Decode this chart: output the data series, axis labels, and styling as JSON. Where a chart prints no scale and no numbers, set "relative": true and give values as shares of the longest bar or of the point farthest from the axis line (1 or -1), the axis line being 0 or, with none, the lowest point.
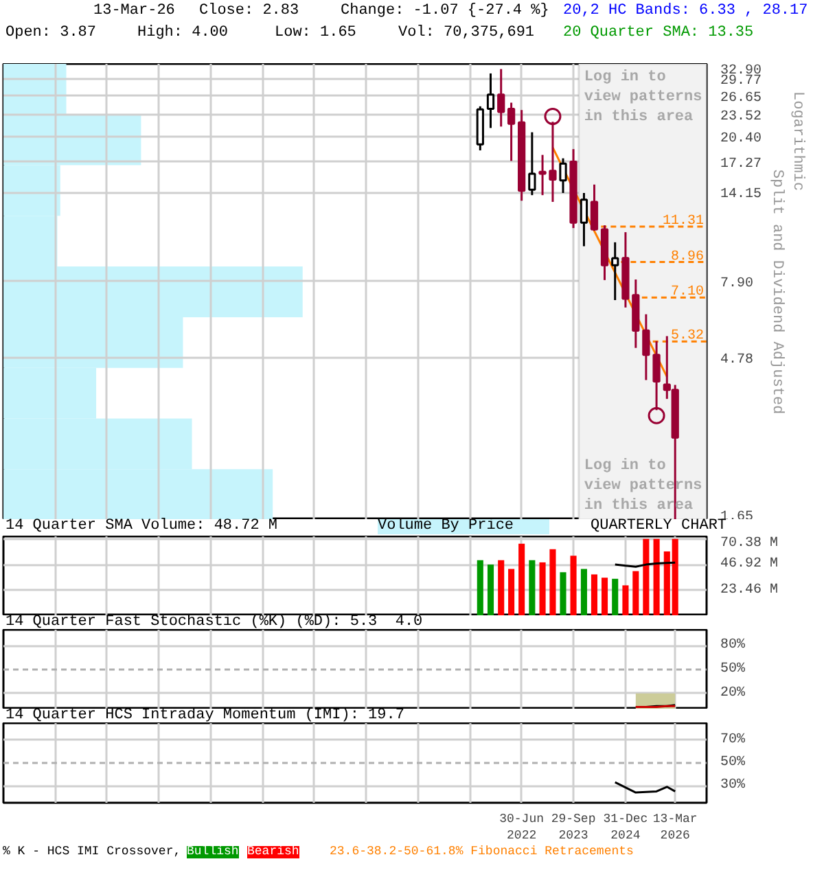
{
  "chart_data": [
    {
      "type": "candlestick",
      "ylabel": "Split and Dividend Adjusted",
      "log": true,
      "grid": true,
      "tick_labels": "y",
      "annotations": [
        "13-Mar-26",
        "Close: 2.83",
        "Change: -1.07 {-27.4 %}",
        "20,2 HC Bands: 6.33 , 28.17",
        "Open: 3.87",
        "High: 4.00",
        "Low: 1.65",
        "Vol: 70,375,691",
        "20 Quarter SMA: 13.35",
        "Logarithmic",
        "Log in to view patterns in this area"
      ],
      "xlim": [
        "2009-12-31",
        "2026-12-15"
      ],
      "xticks": [
        {
          "value": "2011-03-31",
          "label": null
        },
        {
          "value": "2012-06-30",
          "label": null
        },
        {
          "value": "2013-09-30",
          "label": null
        },
        {
          "value": "2014-12-31",
          "label": null
        },
        {
          "value": "2016-03-31",
          "label": null
        },
        {
          "value": "2017-06-30",
          "label": null
        },
        {
          "value": "2018-09-30",
          "label": null
        },
        {
          "value": "2019-12-31",
          "label": null
        },
        {
          "value": "2021-03-31",
          "label": null
        },
        {
          "value": "2022-06-30",
          "label": null
        },
        {
          "value": "2023-09-29",
          "label": null
        },
        {
          "value": "2024-12-31",
          "label": null
        },
        {
          "value": "2026-03-13",
          "label": null
        }
      ],
      "ylim": [
        1.65,
        32.9
      ],
      "yticks": [
        {
          "value": 32.9,
          "label": "32.90"
        },
        29.77,
        26.65,
        23.52,
        {
          "value": 20.4,
          "label": "20.40"
        },
        17.27,
        14.15,
        {
          "value": 7.9,
          "label": "7.90"
        },
        4.78,
        1.65
      ],
      "series": [
        {
          "type": "line",
          "color": "#ff8000",
          "x": [
            "2023-03-31",
            "2025-12-31"
          ],
          "values": [
            19.0,
            4.22
          ]
        },
        {
          "type": "candlestick",
          "color": "#ffffff",
          "x": [
            "2021-06-30",
            "2021-09-30",
            "2022-09-30",
            "2023-06-30",
            "2023-12-31",
            "2024-09-30"
          ],
          "ohlc": [
            [
              19.4,
              24.9,
              18.65,
              24.4
            ],
            [
              24.5,
              30.9,
              21.6,
              26.9
            ],
            [
              14.4,
              21.0,
              13.9,
              16.0
            ],
            [
              15.3,
              17.7,
              14.1,
              17.1
            ],
            [
              11.6,
              14.1,
              9.94,
              13.5
            ],
            [
              8.77,
              10.2,
              6.98,
              9.19
            ]
          ]
        },
        {
          "type": "candlestick",
          "color": "#990033",
          "x": [
            "2021-12-31",
            "2022-03-31",
            "2022-06-30",
            "2022-12-31",
            "2023-03-31",
            "2023-09-29",
            "2024-03-31",
            "2024-06-30",
            "2024-12-31",
            "2025-03-31",
            "2025-06-30",
            "2025-09-30",
            "2025-12-31",
            "2026-03-13"
          ],
          "ohlc": [
            [
              26.9,
              31.8,
              21.8,
              24.0
            ],
            [
              24.5,
              25.5,
              17.4,
              22.2
            ],
            [
              22.4,
              24.3,
              13.4,
              14.3
            ],
            [
              16.2,
              18.1,
              13.9,
              16.0
            ],
            [
              16.3,
              22.5,
              13.3,
              15.4
            ],
            [
              17.3,
              18.8,
              11.2,
              11.6
            ],
            [
              13.3,
              14.9,
              11.0,
              11.1
            ],
            [
              11.1,
              11.4,
              7.96,
              8.77
            ],
            [
              9.2,
              10.9,
              6.65,
              7.04
            ],
            [
              7.21,
              7.99,
              5.1,
              5.71
            ],
            [
              5.72,
              6.36,
              4.13,
              4.87
            ],
            [
              4.87,
              5.33,
              3.39,
              4.09
            ],
            [
              4.01,
              5.51,
              3.65,
              3.87
            ],
            [
              3.87,
              4.0,
              1.65,
              2.83
            ]
          ]
        },
        {
          "type": "scatter",
          "marker": "circle",
          "color": "#990033",
          "x": [
            "2023-03-31",
            "2025-09-30"
          ],
          "values": [
            23.3,
            3.27
          ]
        }
      ],
      "ref_lines": [
        {
          "axis": "y",
          "value": 11.31,
          "label": "11.31",
          "color": "#ff8000",
          "line_style": "dashed"
        },
        {
          "axis": "y",
          "value": 8.96,
          "label": "8.96",
          "color": "#ff8000",
          "line_style": "dashed"
        },
        {
          "axis": "y",
          "value": 7.1,
          "label": "7.10",
          "color": "#ff8000",
          "line_style": "dashed"
        },
        {
          "axis": "y",
          "value": 5.32,
          "label": "5.32",
          "color": "#ff8000",
          "line_style": "dashed"
        }
      ],
      "bands": [
        {
          "axis": "x",
          "from": "2023-11-15",
          "to": "2026-12-15",
          "label": "Log in to view patterns in this area",
          "color": "#f2f2f2"
        }
      ]
    },
    {
      "type": "bar",
      "orientation": "horizontal",
      "relative": true,
      "categories": [
        null,
        null,
        null,
        null,
        null,
        null,
        null,
        null,
        null
      ],
      "series": [
        {
          "name": "Volume By Price",
          "color": "#c6f4fc",
          "values": [
            0.21,
            0.46,
            0.19,
            0.18,
            1.0,
            0.6,
            0.31,
            0.63,
            0.9
          ]
        }
      ]
    },
    {
      "type": "bar",
      "title": "14 Quarter SMA Volume: 48.72 M",
      "annotations": [
        "QUARTERLY CHART"
      ],
      "grid": true,
      "tick_labels": "y",
      "x": [
        "2021-06-30",
        "2021-09-30",
        "2021-12-31",
        "2022-03-31",
        "2022-06-30",
        "2022-09-30",
        "2022-12-31",
        "2023-03-31",
        "2023-06-30",
        "2023-09-29",
        "2023-12-31",
        "2024-03-31",
        "2024-06-30",
        "2024-09-30",
        "2024-12-31",
        "2025-03-31",
        "2025-06-30",
        "2025-09-30",
        "2025-12-31",
        "2026-03-13"
      ],
      "xlim": [
        "2009-12-31",
        "2026-12-15"
      ],
      "xticks": [
        {
          "value": "2011-03-31",
          "label": null
        },
        {
          "value": "2012-06-30",
          "label": null
        },
        {
          "value": "2013-09-30",
          "label": null
        },
        {
          "value": "2014-12-31",
          "label": null
        },
        {
          "value": "2016-03-31",
          "label": null
        },
        {
          "value": "2017-06-30",
          "label": null
        },
        {
          "value": "2018-09-30",
          "label": null
        },
        {
          "value": "2019-12-31",
          "label": null
        },
        {
          "value": "2021-03-31",
          "label": null
        },
        {
          "value": "2022-06-30",
          "label": null
        },
        {
          "value": "2023-09-29",
          "label": null
        },
        {
          "value": "2024-12-31",
          "label": null
        },
        {
          "value": "2026-03-13",
          "label": null
        }
      ],
      "ylim": [
        0,
        72.8
      ],
      "yticks": [
        {
          "value": 70.38,
          "label": "70.38 M"
        },
        {
          "value": 46.92,
          "label": "46.92 M"
        },
        {
          "value": 23.46,
          "label": "23.46 M"
        }
      ],
      "series": [
        {
          "type": "bar",
          "colors": [
            "#009900",
            "#009900",
            "#ff0000",
            "#ff0000",
            "#ff0000",
            "#009900",
            "#ff0000",
            "#ff0000",
            "#009900",
            "#ff0000",
            "#009900",
            "#ff0000",
            "#ff0000",
            "#009900",
            "#ff0000",
            "#ff0000",
            "#ff0000",
            "#ff0000",
            "#ff0000",
            "#ff0000"
          ],
          "values": [
            51,
            47,
            51,
            43,
            66,
            51,
            49,
            61,
            40,
            55,
            43,
            38,
            35,
            34,
            28,
            41,
            70.38,
            70.38,
            59,
            70.38
          ]
        },
        {
          "type": "line",
          "color": "#000000",
          "x": [
            "2024-09-30",
            "2024-12-31",
            "2025-03-31",
            "2025-06-30",
            "2025-09-30",
            "2025-12-31",
            "2026-03-13"
          ],
          "values": [
            47,
            46,
            45,
            47,
            48,
            48.5,
            48.72
          ]
        }
      ]
    },
    {
      "type": "line",
      "title": "14 Quarter Fast Stochastic (%K) (%D): 5.3  4.0",
      "grid": true,
      "tick_labels": "y",
      "xlim": [
        "2009-12-31",
        "2026-12-15"
      ],
      "xticks": [
        {
          "value": "2011-03-31",
          "label": null
        },
        {
          "value": "2012-06-30",
          "label": null
        },
        {
          "value": "2013-09-30",
          "label": null
        },
        {
          "value": "2014-12-31",
          "label": null
        },
        {
          "value": "2016-03-31",
          "label": null
        },
        {
          "value": "2017-06-30",
          "label": null
        },
        {
          "value": "2018-09-30",
          "label": null
        },
        {
          "value": "2019-12-31",
          "label": null
        },
        {
          "value": "2021-03-31",
          "label": null
        },
        {
          "value": "2022-06-30",
          "label": null
        },
        {
          "value": "2023-09-29",
          "label": null
        },
        {
          "value": "2024-12-31",
          "label": null
        },
        {
          "value": "2026-03-13",
          "label": null
        }
      ],
      "ylim": [
        0,
        100
      ],
      "yticks": [
        {
          "value": 80,
          "label": "80%"
        },
        {
          "value": 50,
          "label": "50%"
        },
        {
          "value": 20,
          "label": "20%"
        }
      ],
      "ref_lines": [
        {
          "axis": "y",
          "value": 50,
          "color": "#b0b0b0",
          "line_style": "dashed"
        }
      ],
      "x": [
        "2025-03-31",
        "2025-06-30",
        "2025-09-30",
        "2025-12-31",
        "2026-03-13"
      ],
      "series": [
        {
          "type": "area",
          "color": "#cccc99",
          "values": [
            20,
            20,
            20,
            20,
            20
          ]
        },
        {
          "color": "#000000",
          "values": [
            3,
            3,
            4,
            4,
            5.3
          ]
        },
        {
          "color": "#cc0000",
          "values": [
            3,
            3,
            3,
            4,
            4.0
          ]
        }
      ]
    },
    {
      "type": "line",
      "title": "14 Quarter HCS Intraday Momentum (IMI): 19.7",
      "grid": true,
      "annotations": [
        "% K - HCS IMI Crossover,",
        "Bullish",
        "Bearish",
        "23.6-38.2-50-61.8% Fibonacci Retracements"
      ],
      "xlim": [
        "2009-12-31",
        "2026-12-15"
      ],
      "xticks": [
        {
          "value": "2011-03-31",
          "label": null
        },
        {
          "value": "2012-06-30",
          "label": null
        },
        {
          "value": "2013-09-30",
          "label": null
        },
        {
          "value": "2014-12-31",
          "label": null
        },
        {
          "value": "2016-03-31",
          "label": null
        },
        {
          "value": "2017-06-30",
          "label": null
        },
        {
          "value": "2018-09-30",
          "label": null
        },
        {
          "value": "2019-12-31",
          "label": null
        },
        {
          "value": "2021-03-31",
          "label": null
        },
        {
          "value": "2022-06-30",
          "label": "30-Jun\n2022"
        },
        {
          "value": "2023-09-29",
          "label": "29-Sep\n2023"
        },
        {
          "value": "2024-12-31",
          "label": "31-Dec\n2024"
        },
        {
          "value": "2026-03-13",
          "label": "13-Mar\n2026"
        }
      ],
      "ylim": [
        15,
        85
      ],
      "yticks": [
        {
          "value": 70,
          "label": "70%"
        },
        {
          "value": 50,
          "label": "50%"
        },
        {
          "value": 30,
          "label": "30%"
        }
      ],
      "ref_lines": [
        {
          "axis": "y",
          "value": 50,
          "color": "#b0b0b0",
          "line_style": "dashed"
        }
      ],
      "series": [
        {
          "color": "#000000",
          "x": [
            "2024-09-30",
            "2025-03-31",
            "2025-09-30",
            "2025-12-31",
            "2026-03-13"
          ],
          "values": [
            33,
            24,
            25,
            29,
            25
          ]
        }
      ]
    }
  ]
}
